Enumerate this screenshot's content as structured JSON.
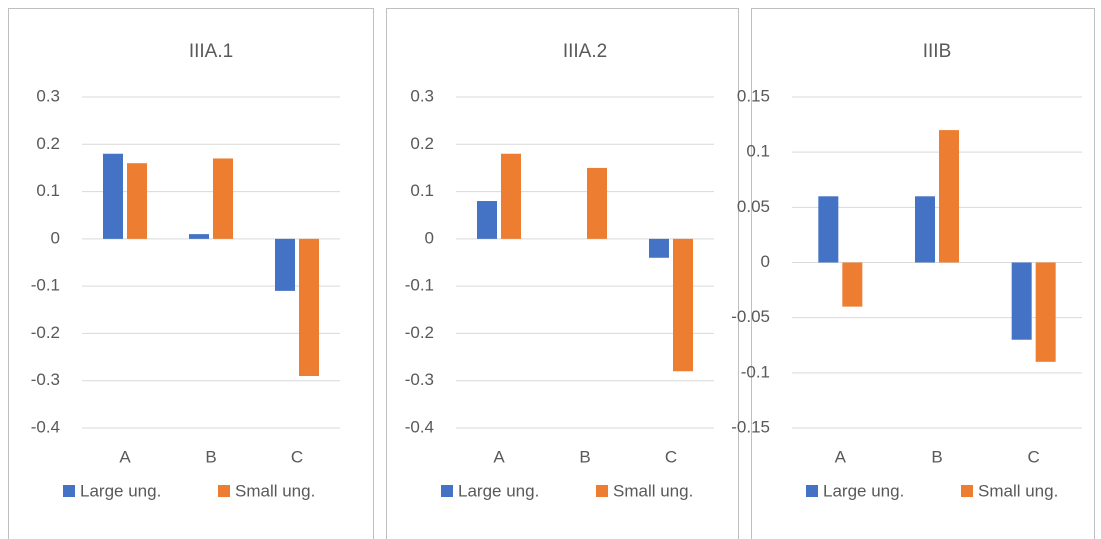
{
  "chart_data": [
    {
      "type": "bar",
      "title": "IIIA.1",
      "categories": [
        "A",
        "B",
        "C"
      ],
      "series": [
        {
          "name": "Large ung.",
          "color": "#4472c4",
          "values": [
            0.18,
            0.01,
            -0.11
          ]
        },
        {
          "name": "Small ung.",
          "color": "#ed7d31",
          "values": [
            0.16,
            0.17,
            -0.29
          ]
        }
      ],
      "ylim": [
        -0.4,
        0.3
      ],
      "yticks": [
        0.3,
        0.2,
        0.1,
        0,
        -0.1,
        -0.2,
        -0.3,
        -0.4
      ],
      "grid": true,
      "legend": "bottom"
    },
    {
      "type": "bar",
      "title": "IIIA.2",
      "categories": [
        "A",
        "B",
        "C"
      ],
      "series": [
        {
          "name": "Large ung.",
          "color": "#4472c4",
          "values": [
            0.08,
            0,
            -0.04
          ]
        },
        {
          "name": "Small ung.",
          "color": "#ed7d31",
          "values": [
            0.18,
            0.15,
            -0.28
          ]
        }
      ],
      "ylim": [
        -0.4,
        0.3
      ],
      "yticks": [
        0.3,
        0.2,
        0.1,
        0,
        -0.1,
        -0.2,
        -0.3,
        -0.4
      ],
      "grid": true,
      "legend": "bottom"
    },
    {
      "type": "bar",
      "title": "IIIB",
      "categories": [
        "A",
        "B",
        "C"
      ],
      "series": [
        {
          "name": "Large ung.",
          "color": "#4472c4",
          "values": [
            0.06,
            0.06,
            -0.07
          ]
        },
        {
          "name": "Small ung.",
          "color": "#ed7d31",
          "values": [
            -0.04,
            0.12,
            -0.09
          ]
        }
      ],
      "ylim": [
        -0.15,
        0.15
      ],
      "yticks": [
        0.15,
        0.1,
        0.05,
        0,
        -0.05,
        -0.1,
        -0.15
      ],
      "grid": true,
      "legend": "bottom"
    }
  ]
}
